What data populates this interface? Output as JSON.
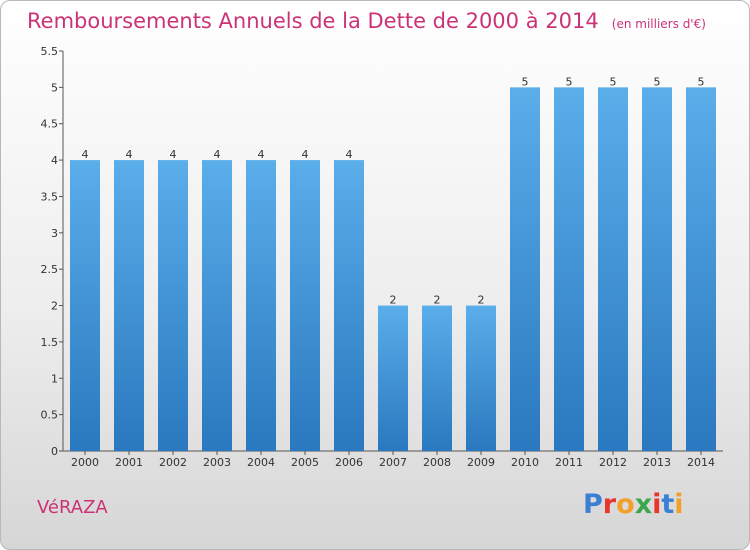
{
  "header": {
    "title": "Remboursements Annuels de la Dette de 2000 à 2014",
    "unit": "(en milliers d'€)"
  },
  "footer": {
    "commune": "VéRAZA",
    "logo": {
      "letters": [
        "P",
        "r",
        "o",
        "x",
        "i",
        "t",
        "i"
      ],
      "colors": [
        "#3b7fd4",
        "#e8352e",
        "#f2a02a",
        "#3ea64a",
        "#e8352e",
        "#3b7fd4",
        "#f2a02a"
      ]
    }
  },
  "chart_data": {
    "type": "bar",
    "categories": [
      "2000",
      "2001",
      "2002",
      "2003",
      "2004",
      "2005",
      "2006",
      "2007",
      "2008",
      "2009",
      "2010",
      "2011",
      "2012",
      "2013",
      "2014"
    ],
    "values": [
      4,
      4,
      4,
      4,
      4,
      4,
      4,
      2,
      2,
      2,
      5,
      5,
      5,
      5,
      5
    ],
    "data_labels": [
      "4",
      "4",
      "4",
      "4",
      "4",
      "4",
      "4",
      "2",
      "2",
      "2",
      "5",
      "5",
      "5",
      "5",
      "5"
    ],
    "yticks": [
      "0",
      "0.5",
      "1",
      "1.5",
      "2",
      "2.5",
      "3",
      "3.5",
      "4",
      "4.5",
      "5",
      "5.5"
    ],
    "ylim": [
      0,
      5.5
    ],
    "grid": false,
    "legend": "none",
    "bar_color": "#4a9de0"
  }
}
